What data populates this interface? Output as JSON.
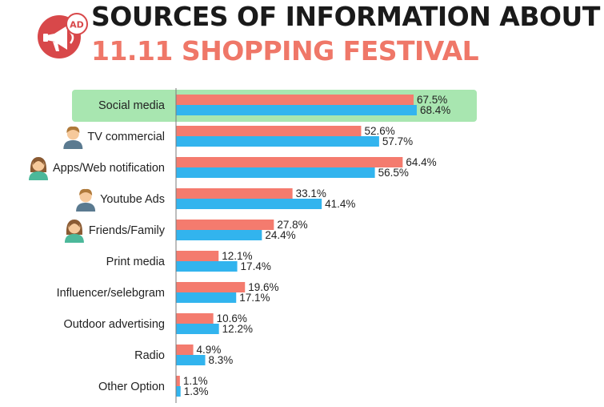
{
  "title": {
    "line1": "SOURCES OF INFORMATION ABOUT",
    "line2": "11.11 SHOPPING FESTIVAL"
  },
  "logo": {
    "icon": "megaphone-ad-icon",
    "badge_text": "AD"
  },
  "colors": {
    "series1": "#f47b6e",
    "series2": "#32b4ee",
    "highlight": "#a8e6b0",
    "title_accent": "#ef7768"
  },
  "chart_data": {
    "type": "bar",
    "orientation": "horizontal",
    "categories": [
      "Social media",
      "TV commercial",
      "Apps/Web notification",
      "Youtube Ads",
      "Friends/Family",
      "Print media",
      "Influencer/selebgram",
      "Outdoor advertising",
      "Radio",
      "Other Option"
    ],
    "series": [
      {
        "values": [
          67.5,
          52.6,
          64.4,
          33.1,
          27.8,
          12.1,
          19.6,
          10.6,
          4.9,
          1.1
        ],
        "labels": [
          "67.5%",
          "52.6%",
          "64.4%",
          "33.1%",
          "27.8%",
          "12.1%",
          "19.6%",
          "10.6%",
          "4.9%",
          "1.1%"
        ]
      },
      {
        "values": [
          68.4,
          57.7,
          56.5,
          41.4,
          24.4,
          17.4,
          17.1,
          12.2,
          8.3,
          1.3
        ],
        "labels": [
          "68.4%",
          "57.7%",
          "56.5%",
          "41.4%",
          "24.4%",
          "17.4%",
          "17.1%",
          "12.2%",
          "8.3%",
          "1.3%"
        ]
      }
    ],
    "highlighted_category": "Social media",
    "category_icons": [
      null,
      "man-avatar-icon",
      "woman-avatar-icon",
      "man-avatar-icon",
      "woman-avatar-icon",
      null,
      null,
      null,
      null,
      null
    ],
    "xlim": [
      0,
      100
    ],
    "grid": false,
    "legend": "none"
  }
}
